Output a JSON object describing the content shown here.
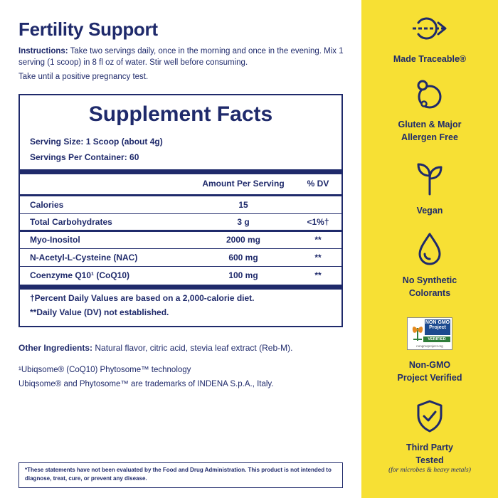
{
  "title": "Fertility Support",
  "instructions": {
    "label": "Instructions:",
    "text": " Take two servings daily, once in the morning and once in the evening. Mix 1 serving (1 scoop) in 8 fl oz of water. Stir well before consuming.",
    "note": "Take until a positive pregnancy test."
  },
  "supplement_facts": {
    "title": "Supplement Facts",
    "serving_size": "Serving Size: 1 Scoop (about 4g)",
    "servings_per_container": "Servings Per Container: 60",
    "header_amount": "Amount Per Serving",
    "header_dv": "% DV",
    "rows": [
      {
        "name": "Calories",
        "amount": "15",
        "dv": ""
      },
      {
        "name": "Total Carbohydrates",
        "amount": "3 g",
        "dv": "<1%†"
      },
      {
        "name": "Myo-Inositol",
        "amount": "2000 mg",
        "dv": "**"
      },
      {
        "name": "N-Acetyl-L-Cysteine (NAC)",
        "amount": "600 mg",
        "dv": "**"
      },
      {
        "name": "Coenzyme Q10¹ (CoQ10)",
        "amount": "100 mg",
        "dv": "**"
      }
    ],
    "footnote1": "†Percent Daily Values are based on a 2,000-calorie diet.",
    "footnote2": "**Daily Value (DV) not established."
  },
  "other_ingredients": {
    "label": "Other Ingredients:",
    "text": " Natural flavor, citric acid, stevia leaf extract (Reb-M)."
  },
  "ubiqsome_line1": "¹Ubiqsome® (CoQ10) Phytosome™ technology",
  "ubiqsome_line2": "Ubiqsome® and Phytosome™ are trademarks of  INDENA  S.p.A., Italy.",
  "disclaimer": "*These statements have not been evaluated by the Food and Drug Administration. This product is not intended to diagnose, treat, cure, or prevent any disease.",
  "features": [
    {
      "icon": "traceable-arrow-icon",
      "label": "Made Traceable®"
    },
    {
      "icon": "allergen-free-icon",
      "label_line1": "Gluten & Major",
      "label_line2": "Allergen Free"
    },
    {
      "icon": "sprout-icon",
      "label": "Vegan"
    },
    {
      "icon": "droplet-icon",
      "label_line1": "No Synthetic",
      "label_line2": "Colorants"
    },
    {
      "icon": "non-gmo-badge",
      "label_line1": "Non-GMO",
      "label_line2": "Project Verified"
    },
    {
      "icon": "shield-check-icon",
      "label_line1": "Third Party",
      "label_line2": "Tested",
      "sub": "(for microbes & heavy metals)"
    }
  ],
  "non_gmo_badge": {
    "top": "NON GMO Project",
    "verified": "VERIFIED",
    "site": "nongmoproject.org"
  },
  "colors": {
    "navy": "#1f2a6b",
    "yellow": "#f7e034"
  }
}
